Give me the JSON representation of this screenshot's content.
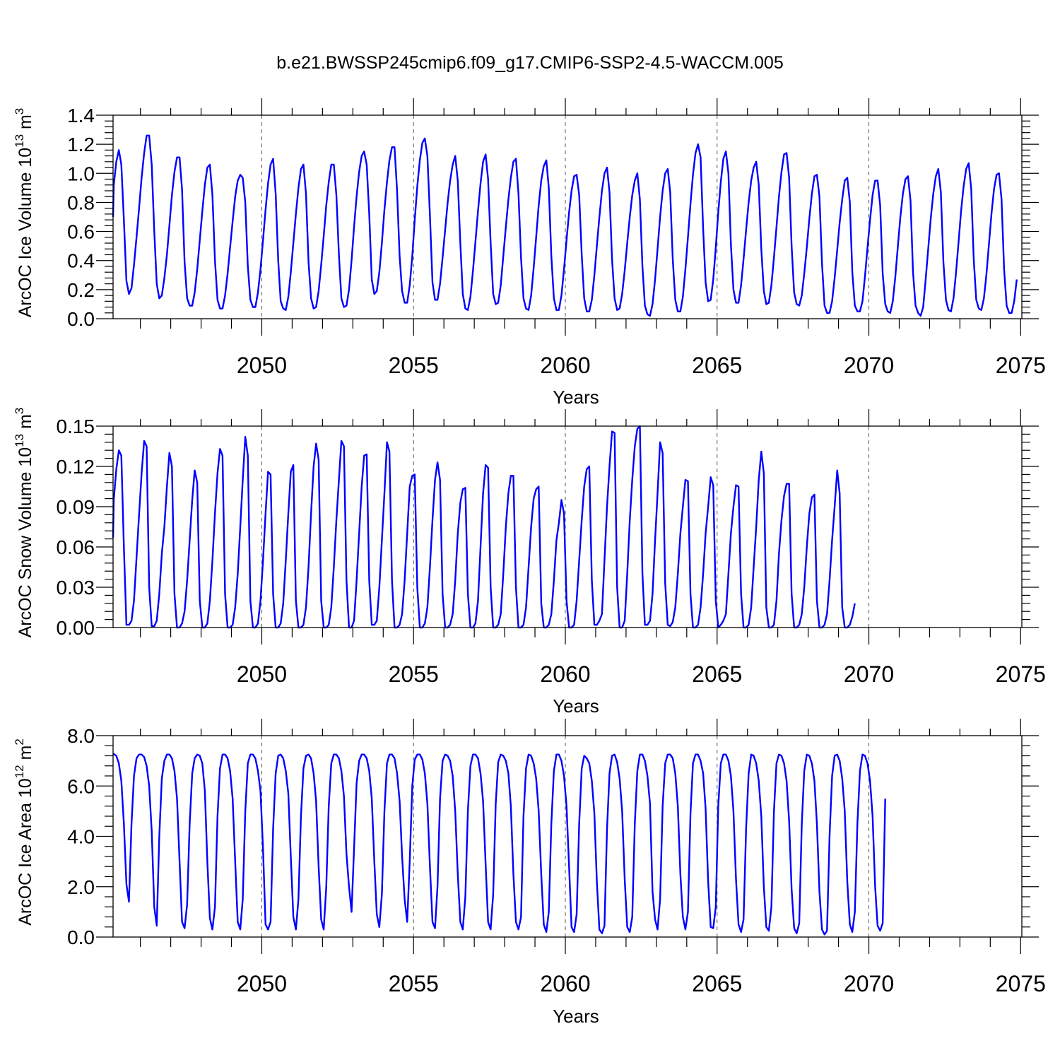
{
  "title": "b.e21.BWSSP245cmip6.f09_g17.CMIP6-SSP2-4.5-WACCM.005",
  "colors": {
    "line": "#0000ff",
    "grid": "#555555",
    "axis": "#000000"
  },
  "chart_data": [
    {
      "type": "line",
      "ylabel": "ArcOC Ice Volume 10",
      "ylabel_exp": "13",
      "ylabel_unit": " m",
      "ylabel_unit_exp": "3",
      "xlabel": "Years",
      "xlim": [
        2045.1,
        2075.04
      ],
      "ylim": [
        0.0,
        1.4
      ],
      "yticks": [
        "0.0",
        "0.2",
        "0.4",
        "0.6",
        "0.8",
        "1.0",
        "1.2",
        "1.4"
      ],
      "ytick_values": [
        0,
        0.2,
        0.4,
        0.6,
        0.8,
        1.0,
        1.2,
        1.4
      ],
      "xticks": [
        "2050",
        "2055",
        "2060",
        "2065",
        "2070",
        "2075"
      ],
      "xtick_values": [
        2050,
        2055,
        2060,
        2065,
        2070,
        2075
      ],
      "x_start": 2045.04,
      "x_step": 0.08333,
      "series": [
        {
          "values": [
            0.7,
            0.92,
            1.08,
            1.16,
            1.06,
            0.68,
            0.26,
            0.17,
            0.21,
            0.37,
            0.56,
            0.76,
            0.97,
            1.14,
            1.26,
            1.26,
            1.06,
            0.6,
            0.24,
            0.14,
            0.16,
            0.28,
            0.44,
            0.64,
            0.85,
            1.01,
            1.11,
            1.11,
            0.89,
            0.39,
            0.14,
            0.09,
            0.09,
            0.18,
            0.34,
            0.54,
            0.74,
            0.92,
            1.04,
            1.06,
            0.85,
            0.4,
            0.13,
            0.07,
            0.07,
            0.16,
            0.31,
            0.49,
            0.67,
            0.84,
            0.95,
            0.99,
            0.97,
            0.8,
            0.36,
            0.13,
            0.08,
            0.08,
            0.18,
            0.34,
            0.54,
            0.75,
            0.93,
            1.06,
            1.1,
            0.86,
            0.4,
            0.12,
            0.07,
            0.06,
            0.15,
            0.32,
            0.52,
            0.72,
            0.9,
            1.03,
            1.06,
            0.86,
            0.39,
            0.14,
            0.07,
            0.08,
            0.19,
            0.37,
            0.57,
            0.78,
            0.94,
            1.06,
            1.06,
            0.85,
            0.44,
            0.14,
            0.08,
            0.09,
            0.2,
            0.4,
            0.63,
            0.84,
            1.01,
            1.12,
            1.15,
            1.06,
            0.72,
            0.27,
            0.17,
            0.19,
            0.32,
            0.52,
            0.75,
            0.94,
            1.09,
            1.18,
            1.18,
            0.88,
            0.43,
            0.19,
            0.11,
            0.11,
            0.23,
            0.43,
            0.68,
            0.91,
            1.09,
            1.21,
            1.24,
            1.12,
            0.71,
            0.25,
            0.13,
            0.13,
            0.24,
            0.42,
            0.61,
            0.8,
            0.95,
            1.06,
            1.12,
            0.95,
            0.52,
            0.17,
            0.07,
            0.06,
            0.15,
            0.33,
            0.53,
            0.74,
            0.93,
            1.08,
            1.13,
            0.96,
            0.52,
            0.17,
            0.1,
            0.11,
            0.23,
            0.43,
            0.63,
            0.82,
            0.97,
            1.08,
            1.1,
            0.86,
            0.42,
            0.14,
            0.07,
            0.06,
            0.16,
            0.35,
            0.56,
            0.78,
            0.95,
            1.05,
            1.09,
            0.9,
            0.43,
            0.14,
            0.06,
            0.06,
            0.16,
            0.34,
            0.54,
            0.73,
            0.88,
            0.98,
            0.99,
            0.85,
            0.44,
            0.14,
            0.05,
            0.05,
            0.13,
            0.3,
            0.5,
            0.7,
            0.88,
            1.0,
            1.04,
            0.87,
            0.41,
            0.14,
            0.06,
            0.07,
            0.17,
            0.33,
            0.52,
            0.7,
            0.85,
            0.95,
            1.0,
            0.82,
            0.36,
            0.09,
            0.03,
            0.02,
            0.1,
            0.27,
            0.48,
            0.7,
            0.88,
            1.0,
            1.03,
            0.87,
            0.41,
            0.13,
            0.05,
            0.05,
            0.15,
            0.34,
            0.56,
            0.79,
            0.99,
            1.14,
            1.2,
            1.11,
            0.62,
            0.25,
            0.12,
            0.13,
            0.27,
            0.49,
            0.73,
            0.94,
            1.1,
            1.15,
            1.0,
            0.51,
            0.2,
            0.11,
            0.11,
            0.23,
            0.41,
            0.61,
            0.8,
            0.95,
            1.04,
            1.08,
            0.92,
            0.48,
            0.19,
            0.1,
            0.11,
            0.23,
            0.42,
            0.63,
            0.84,
            1.01,
            1.13,
            1.14,
            0.97,
            0.5,
            0.18,
            0.1,
            0.09,
            0.16,
            0.31,
            0.49,
            0.69,
            0.86,
            0.98,
            0.99,
            0.84,
            0.38,
            0.09,
            0.04,
            0.04,
            0.12,
            0.28,
            0.47,
            0.66,
            0.82,
            0.95,
            0.97,
            0.8,
            0.32,
            0.09,
            0.05,
            0.05,
            0.12,
            0.29,
            0.49,
            0.68,
            0.85,
            0.95,
            0.95,
            0.78,
            0.31,
            0.1,
            0.05,
            0.04,
            0.12,
            0.29,
            0.5,
            0.7,
            0.86,
            0.96,
            0.98,
            0.81,
            0.32,
            0.09,
            0.04,
            0.02,
            0.08,
            0.27,
            0.48,
            0.69,
            0.86,
            0.98,
            1.03,
            0.87,
            0.39,
            0.13,
            0.06,
            0.05,
            0.14,
            0.32,
            0.53,
            0.74,
            0.91,
            1.03,
            1.07,
            0.89,
            0.41,
            0.13,
            0.07,
            0.06,
            0.14,
            0.3,
            0.51,
            0.72,
            0.89,
            0.99,
            1.0,
            0.82,
            0.34,
            0.09,
            0.04,
            0.04,
            0.12,
            0.27
          ]
        }
      ]
    },
    {
      "type": "line",
      "ylabel": "ArcOC Snow Volume 10",
      "ylabel_exp": "13",
      "ylabel_unit": " m",
      "ylabel_unit_exp": "3",
      "xlabel": "Years",
      "xlim": [
        2045.1,
        2075.04
      ],
      "ylim": [
        0.0,
        0.15
      ],
      "yticks": [
        "0.00",
        "0.03",
        "0.06",
        "0.09",
        "0.12",
        "0.15"
      ],
      "ytick_values": [
        0,
        0.03,
        0.06,
        0.09,
        0.12,
        0.15
      ],
      "xticks": [
        "2050",
        "2055",
        "2060",
        "2065",
        "2070",
        "2075"
      ],
      "xtick_values": [
        2050,
        2055,
        2060,
        2065,
        2070,
        2075
      ],
      "x_start": 2045.04,
      "x_step": 0.08333,
      "series": [
        {
          "values": [
            0.067,
            0.095,
            0.118,
            0.132,
            0.128,
            0.06,
            0.002,
            0.002,
            0.005,
            0.02,
            0.052,
            0.084,
            0.115,
            0.139,
            0.135,
            0.03,
            0.001,
            0.001,
            0.005,
            0.025,
            0.055,
            0.075,
            0.105,
            0.13,
            0.12,
            0.025,
            0.0,
            0.0,
            0.003,
            0.012,
            0.035,
            0.065,
            0.095,
            0.117,
            0.108,
            0.02,
            0.0,
            0.0,
            0.003,
            0.02,
            0.05,
            0.085,
            0.115,
            0.133,
            0.128,
            0.025,
            0.0,
            0.0,
            0.002,
            0.015,
            0.04,
            0.075,
            0.11,
            0.142,
            0.128,
            0.02,
            0.0,
            0.0,
            0.003,
            0.02,
            0.05,
            0.085,
            0.116,
            0.114,
            0.025,
            0.0,
            0.0,
            0.003,
            0.018,
            0.05,
            0.085,
            0.116,
            0.121,
            0.02,
            0.0,
            0.0,
            0.002,
            0.015,
            0.045,
            0.085,
            0.12,
            0.137,
            0.125,
            0.02,
            0.0,
            0.0,
            0.002,
            0.015,
            0.045,
            0.08,
            0.11,
            0.139,
            0.135,
            0.035,
            0.0,
            0.0,
            0.005,
            0.035,
            0.07,
            0.105,
            0.128,
            0.129,
            0.035,
            0.002,
            0.002,
            0.005,
            0.03,
            0.065,
            0.1,
            0.138,
            0.131,
            0.035,
            0.0,
            0.0,
            0.002,
            0.01,
            0.035,
            0.07,
            0.105,
            0.113,
            0.114,
            0.03,
            0.0,
            0.0,
            0.003,
            0.015,
            0.045,
            0.08,
            0.11,
            0.123,
            0.11,
            0.025,
            0.0,
            0.0,
            0.002,
            0.01,
            0.035,
            0.07,
            0.093,
            0.103,
            0.104,
            0.025,
            0.0,
            0.0,
            0.003,
            0.02,
            0.06,
            0.1,
            0.121,
            0.119,
            0.03,
            0.0,
            0.0,
            0.002,
            0.01,
            0.04,
            0.075,
            0.1,
            0.113,
            0.113,
            0.03,
            0.0,
            0.0,
            0.002,
            0.015,
            0.045,
            0.075,
            0.096,
            0.103,
            0.105,
            0.018,
            0.0,
            0.0,
            0.002,
            0.01,
            0.035,
            0.065,
            0.078,
            0.095,
            0.085,
            0.02,
            0.0,
            0.0,
            0.002,
            0.02,
            0.05,
            0.08,
            0.105,
            0.118,
            0.12,
            0.035,
            0.002,
            0.002,
            0.005,
            0.01,
            0.05,
            0.09,
            0.12,
            0.146,
            0.145,
            0.03,
            0.0,
            0.0,
            0.005,
            0.04,
            0.08,
            0.11,
            0.135,
            0.148,
            0.15,
            0.04,
            0.002,
            0.002,
            0.005,
            0.025,
            0.065,
            0.1,
            0.138,
            0.13,
            0.033,
            0.002,
            0.001,
            0.004,
            0.015,
            0.04,
            0.07,
            0.09,
            0.11,
            0.109,
            0.025,
            0.0,
            0.0,
            0.002,
            0.015,
            0.04,
            0.07,
            0.09,
            0.112,
            0.106,
            0.02,
            0.0,
            0.002,
            0.005,
            0.01,
            0.04,
            0.07,
            0.09,
            0.106,
            0.105,
            0.025,
            0.0,
            0.0,
            0.002,
            0.015,
            0.045,
            0.075,
            0.11,
            0.131,
            0.115,
            0.015,
            0.0,
            0.0,
            0.002,
            0.02,
            0.055,
            0.08,
            0.098,
            0.107,
            0.107,
            0.025,
            0.0,
            0.0,
            0.002,
            0.01,
            0.03,
            0.06,
            0.085,
            0.097,
            0.099,
            0.02,
            0.0,
            0.0,
            0.002,
            0.01,
            0.035,
            0.065,
            0.09,
            0.117,
            0.1,
            0.015,
            0.0,
            0.0,
            0.002,
            0.008,
            0.018
          ]
        }
      ]
    },
    {
      "type": "line",
      "ylabel": "ArcOC Ice Area 10",
      "ylabel_exp": "12",
      "ylabel_unit": " m",
      "ylabel_unit_exp": "2",
      "xlabel": "Years",
      "xlim": [
        2045.1,
        2075.04
      ],
      "ylim": [
        0.0,
        8.0
      ],
      "yticks": [
        "0.0",
        "2.0",
        "4.0",
        "6.0",
        "8.0"
      ],
      "ytick_values": [
        0,
        2,
        4,
        6,
        8
      ],
      "xticks": [
        "2050",
        "2055",
        "2060",
        "2065",
        "2070",
        "2075"
      ],
      "xtick_values": [
        2050,
        2055,
        2060,
        2065,
        2070,
        2075
      ],
      "x_start": 2045.04,
      "x_step": 0.08333,
      "series": [
        {
          "values": [
            7.25,
            7.27,
            7.2,
            6.9,
            6.2,
            4.5,
            2.1,
            1.4,
            4.5,
            6.4,
            7.1,
            7.25,
            7.25,
            7.15,
            6.8,
            6.0,
            4.2,
            1.2,
            0.45,
            4.0,
            6.3,
            7.0,
            7.25,
            7.25,
            7.1,
            6.6,
            5.5,
            3.0,
            0.6,
            0.35,
            1.3,
            4.5,
            6.5,
            7.1,
            7.25,
            7.2,
            6.9,
            5.8,
            3.0,
            0.75,
            0.3,
            1.2,
            4.8,
            6.7,
            7.25,
            7.25,
            7.1,
            6.6,
            5.5,
            3.0,
            0.6,
            0.3,
            1.5,
            5.0,
            6.9,
            7.25,
            7.25,
            7.1,
            6.6,
            5.8,
            3.5,
            0.5,
            0.3,
            0.6,
            4.3,
            6.5,
            7.2,
            7.25,
            7.1,
            6.6,
            5.7,
            3.2,
            0.8,
            0.3,
            1.5,
            4.8,
            6.7,
            7.2,
            7.25,
            7.1,
            6.5,
            5.4,
            2.8,
            0.7,
            0.3,
            2.0,
            5.2,
            6.9,
            7.25,
            7.25,
            7.1,
            6.6,
            5.6,
            3.3,
            2.0,
            1.0,
            3.5,
            6.1,
            7.0,
            7.25,
            7.25,
            7.1,
            6.6,
            5.5,
            3.0,
            0.9,
            0.4,
            1.7,
            5.0,
            6.9,
            7.25,
            7.25,
            7.1,
            6.5,
            5.4,
            3.2,
            1.5,
            0.6,
            3.0,
            6.0,
            7.05,
            7.25,
            7.25,
            7.05,
            6.5,
            5.3,
            2.8,
            0.6,
            0.35,
            2.0,
            5.5,
            7.0,
            7.25,
            7.2,
            7.0,
            6.4,
            5.0,
            2.5,
            0.6,
            0.3,
            1.6,
            5.0,
            6.8,
            7.25,
            7.25,
            7.1,
            6.5,
            5.4,
            2.9,
            0.6,
            0.3,
            1.7,
            5.3,
            6.95,
            7.25,
            7.2,
            7.0,
            6.5,
            5.2,
            2.5,
            0.6,
            0.3,
            0.8,
            4.8,
            6.7,
            7.25,
            7.2,
            6.9,
            6.3,
            5.0,
            2.5,
            0.5,
            0.2,
            1.0,
            4.5,
            6.6,
            7.25,
            7.25,
            7.0,
            6.4,
            5.2,
            2.8,
            0.4,
            0.2,
            0.9,
            4.5,
            6.7,
            7.2,
            7.1,
            6.9,
            6.2,
            4.9,
            2.2,
            0.3,
            0.15,
            0.45,
            4.3,
            6.5,
            7.2,
            7.25,
            6.95,
            6.3,
            5.0,
            2.3,
            0.4,
            0.2,
            0.8,
            4.5,
            6.6,
            7.25,
            7.25,
            7.0,
            6.4,
            5.3,
            1.8,
            0.7,
            0.3,
            1.5,
            5.2,
            6.9,
            7.25,
            7.25,
            7.1,
            6.5,
            5.2,
            2.5,
            0.8,
            0.3,
            1.0,
            4.9,
            6.9,
            7.25,
            7.25,
            7.0,
            6.5,
            5.1,
            2.2,
            0.4,
            0.35,
            1.2,
            5.2,
            6.9,
            7.25,
            7.25,
            7.0,
            6.4,
            5.0,
            2.3,
            0.5,
            0.2,
            0.7,
            4.3,
            6.5,
            7.25,
            7.2,
            6.9,
            6.2,
            4.8,
            2.0,
            0.4,
            0.25,
            1.2,
            5.0,
            6.9,
            7.25,
            7.2,
            6.9,
            6.2,
            4.6,
            1.9,
            0.35,
            0.15,
            0.55,
            4.5,
            6.6,
            7.25,
            7.2,
            6.9,
            6.2,
            4.5,
            1.8,
            0.3,
            0.1,
            0.25,
            4.0,
            6.4,
            7.2,
            7.25,
            7.0,
            6.3,
            5.0,
            2.2,
            0.5,
            0.2,
            1.0,
            4.5,
            6.6,
            7.25,
            7.2,
            6.9,
            6.2,
            4.8,
            2.0,
            0.45,
            0.25,
            0.55,
            5.5
          ]
        }
      ]
    }
  ]
}
